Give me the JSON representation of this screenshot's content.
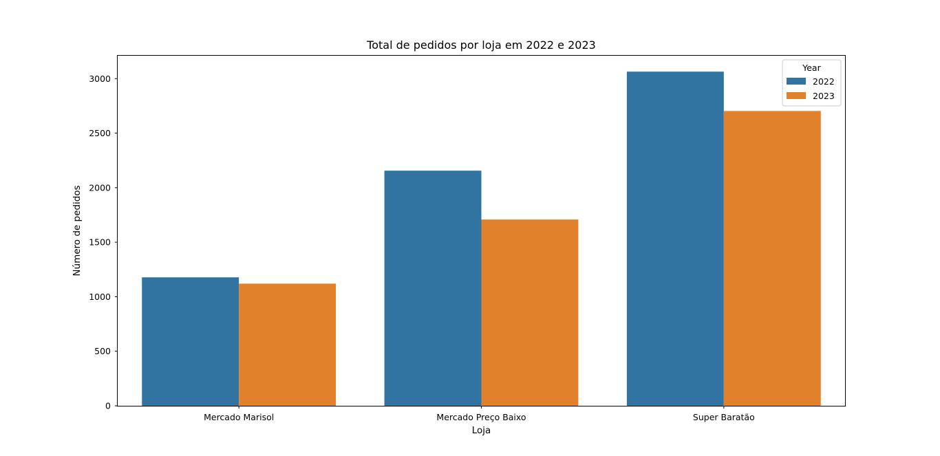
{
  "chart_data": {
    "type": "bar",
    "title": "Total de pedidos por loja em 2022 e 2023",
    "xlabel": "Loja",
    "ylabel": "Número de pedidos",
    "categories": [
      "Mercado Marisol",
      "Mercado Preço Baixo",
      "Super Baratão"
    ],
    "series": [
      {
        "name": "2022",
        "color": "#3274a1",
        "values": [
          1178,
          2156,
          3064
        ]
      },
      {
        "name": "2023",
        "color": "#e1812c",
        "values": [
          1120,
          1708,
          2703
        ]
      }
    ],
    "ylim": [
      0,
      3210
    ],
    "yticks": [
      0,
      500,
      1000,
      1500,
      2000,
      2500,
      3000
    ],
    "legend": {
      "title": "Year",
      "placement": "top-right"
    },
    "grid": false
  }
}
